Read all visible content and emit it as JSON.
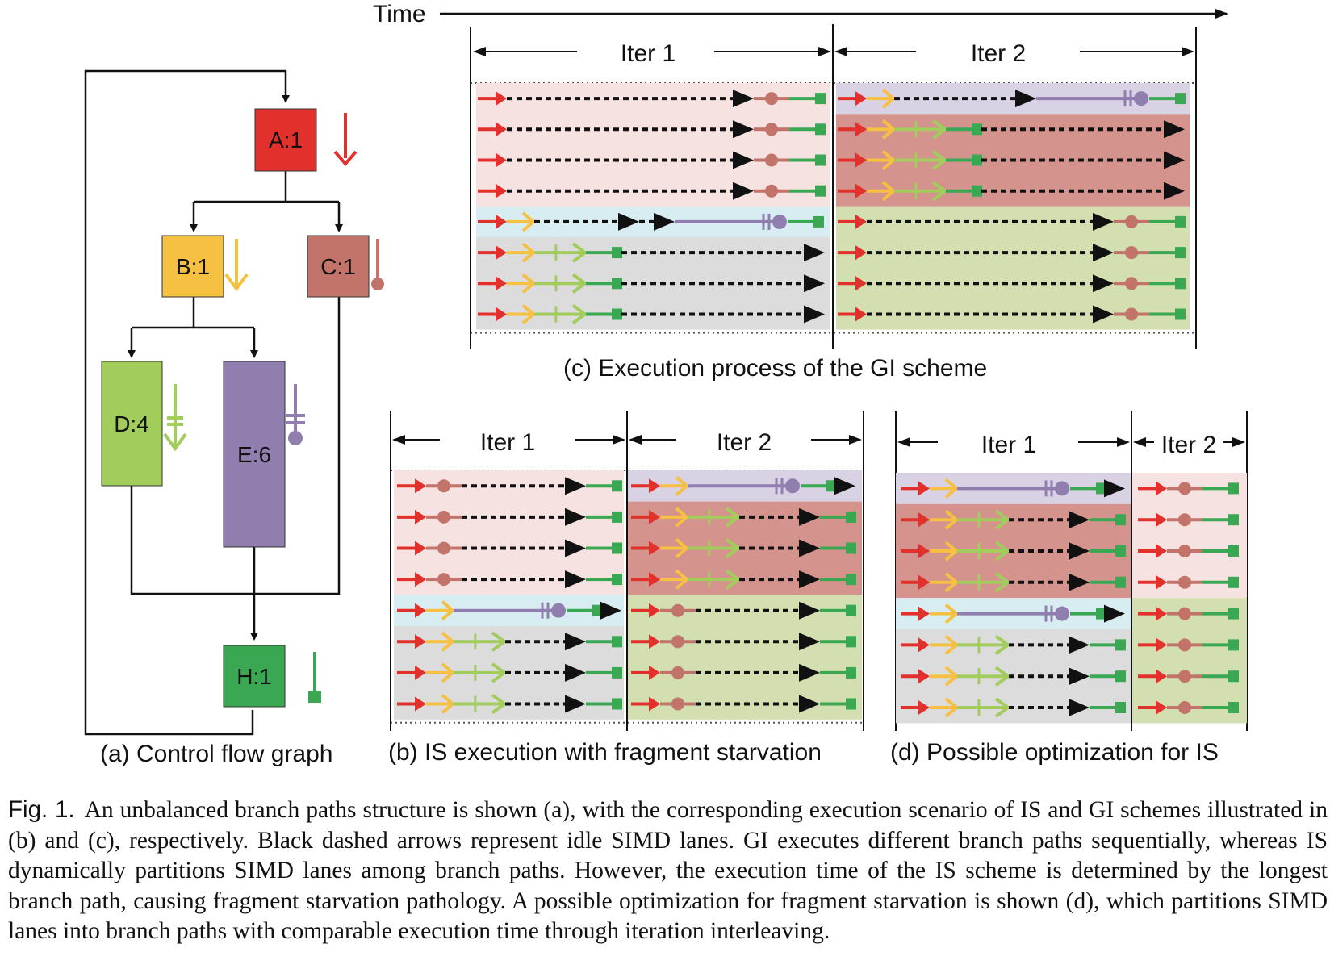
{
  "time_label": "Time",
  "colors": {
    "A": "#e2312d",
    "B": "#f6c042",
    "C": "#c2736a",
    "D": "#a2cc5c",
    "E": "#8f7eae",
    "H": "#3aa853",
    "idle": "#111111",
    "bg_pink": "#f6e3e1",
    "bg_lavender": "#d9d2e5",
    "bg_rose": "#d4938c",
    "bg_lightblue": "#d8edf2",
    "bg_gray": "#dcdcdc",
    "bg_green": "#d3dfb0"
  },
  "cfg": {
    "label": "(a) Control flow graph",
    "nodes": [
      {
        "id": "A",
        "label": "A:1",
        "color": "#e2312d",
        "icon": "arrow-down-icon"
      },
      {
        "id": "B",
        "label": "B:1",
        "color": "#f6c042",
        "icon": "open-arrow-down-icon"
      },
      {
        "id": "C",
        "label": "C:1",
        "color": "#c2736a",
        "icon": "dot-end-icon"
      },
      {
        "id": "D",
        "label": "D:4",
        "color": "#a2cc5c",
        "icon": "cross-arrow-down-icon"
      },
      {
        "id": "E",
        "label": "E:6",
        "color": "#8f7eae",
        "icon": "double-bar-dot-icon"
      },
      {
        "id": "H",
        "label": "H:1",
        "color": "#3aa853",
        "icon": "square-end-icon"
      }
    ]
  },
  "panel_c": {
    "label": "(c)  Execution process of the GI scheme",
    "iter1": "Iter 1",
    "iter2": "Iter 2",
    "lanes": 8,
    "iter1_rows": [
      "AC",
      "AC",
      "AC",
      "AC",
      "ABE",
      "ABDH",
      "ABDH",
      "ABDH"
    ],
    "iter2_rows": [
      "ABE",
      "ABDH",
      "ABDH",
      "ABDH",
      "AC",
      "AC",
      "AC",
      "AC"
    ]
  },
  "panel_b": {
    "label": "(b)  IS execution with fragment starvation",
    "iter1": "Iter 1",
    "iter2": "Iter 2",
    "lanes": 8,
    "iter1_rows": [
      "AC",
      "AC",
      "AC",
      "AC",
      "ABE",
      "ABD",
      "ABD",
      "ABD"
    ],
    "iter2_rows": [
      "ABE",
      "ABD",
      "ABD",
      "ABD",
      "AC",
      "AC",
      "AC",
      "AC"
    ]
  },
  "panel_d": {
    "label": "(d)  Possible optimization for IS",
    "iter1": "Iter 1",
    "iter2": "Iter 2",
    "lanes": 8,
    "iter1_rows": [
      "ABE",
      "ABD",
      "ABD",
      "ABD",
      "ABE",
      "ABD",
      "ABD",
      "ABD"
    ],
    "iter2_rows": [
      "AC",
      "AC",
      "AC",
      "AC",
      "AC",
      "AC",
      "AC",
      "AC"
    ]
  },
  "caption": {
    "lead": "Fig. 1.",
    "text": "An unbalanced branch paths structure is shown (a), with the corresponding execution scenario of IS and GI schemes illustrated in (b) and (c), respectively. Black dashed arrows represent idle SIMD lanes. GI executes different branch paths sequentially, whereas IS dynamically partitions SIMD lanes among branch paths. However, the execution time of the IS scheme is determined by the longest branch path, causing fragment starvation pathology. A possible optimization for fragment starvation is shown (d), which partitions SIMD lanes into branch paths with comparable execution time through iteration interleaving."
  }
}
